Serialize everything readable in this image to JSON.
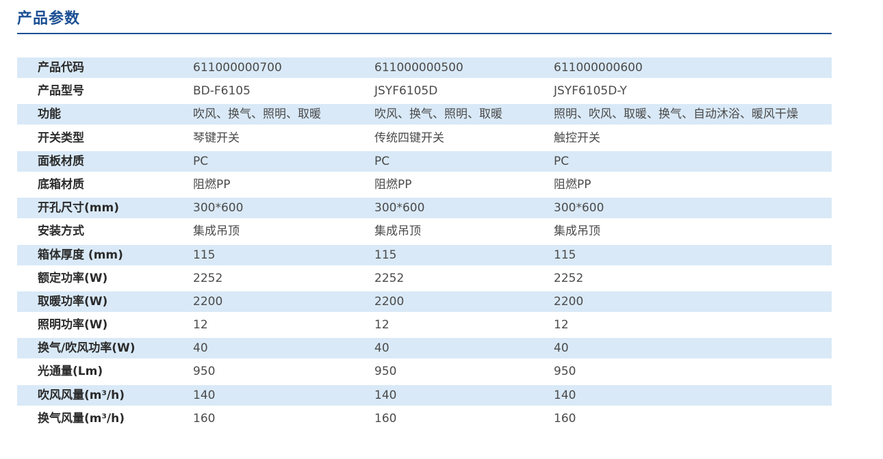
{
  "title": "产品参数",
  "rows": [
    {
      "label": "产品代码",
      "values": [
        "611000000700",
        "611000000500",
        "611000000600"
      ]
    },
    {
      "label": "产品型号",
      "values": [
        "BD-F6105",
        "JSYF6105D",
        "JSYF6105D-Y"
      ]
    },
    {
      "label": "功能",
      "values": [
        "吹风、换气、照明、取暖",
        "吹风、换气、照明、取暖",
        "照明、吹风、取暖、换气、自动沐浴、暖风干燥"
      ]
    },
    {
      "label": "开关类型",
      "values": [
        "琴键开关",
        "传统四键开关",
        "触控开关"
      ]
    },
    {
      "label": "面板材质",
      "values": [
        "PC",
        "PC",
        "PC"
      ]
    },
    {
      "label": "底箱材质",
      "values": [
        "阻燃PP",
        "阻燃PP",
        "阻燃PP"
      ]
    },
    {
      "label": "开孔尺寸(mm)",
      "values": [
        "300*600",
        "300*600",
        "300*600"
      ]
    },
    {
      "label": "安装方式",
      "values": [
        "集成吊顶",
        "集成吊顶",
        "集成吊顶"
      ]
    },
    {
      "label": "箱体厚度 (mm)",
      "values": [
        "115",
        "115",
        "115"
      ]
    },
    {
      "label": "额定功率(W)",
      "values": [
        "2252",
        "2252",
        "2252"
      ]
    },
    {
      "label": "取暖功率(W)",
      "values": [
        "2200",
        "2200",
        "2200"
      ]
    },
    {
      "label": "照明功率(W)",
      "values": [
        "12",
        "12",
        "12"
      ]
    },
    {
      "label": "换气/吹风功率(W)",
      "values": [
        "40",
        "40",
        "40"
      ]
    },
    {
      "label": "光通量(Lm)",
      "values": [
        "950",
        "950",
        "950"
      ]
    },
    {
      "label": "吹风风量(m³/h)",
      "values": [
        "140",
        "140",
        "140"
      ]
    },
    {
      "label": "换气风量(m³/h)",
      "values": [
        "160",
        "160",
        "160"
      ]
    }
  ]
}
